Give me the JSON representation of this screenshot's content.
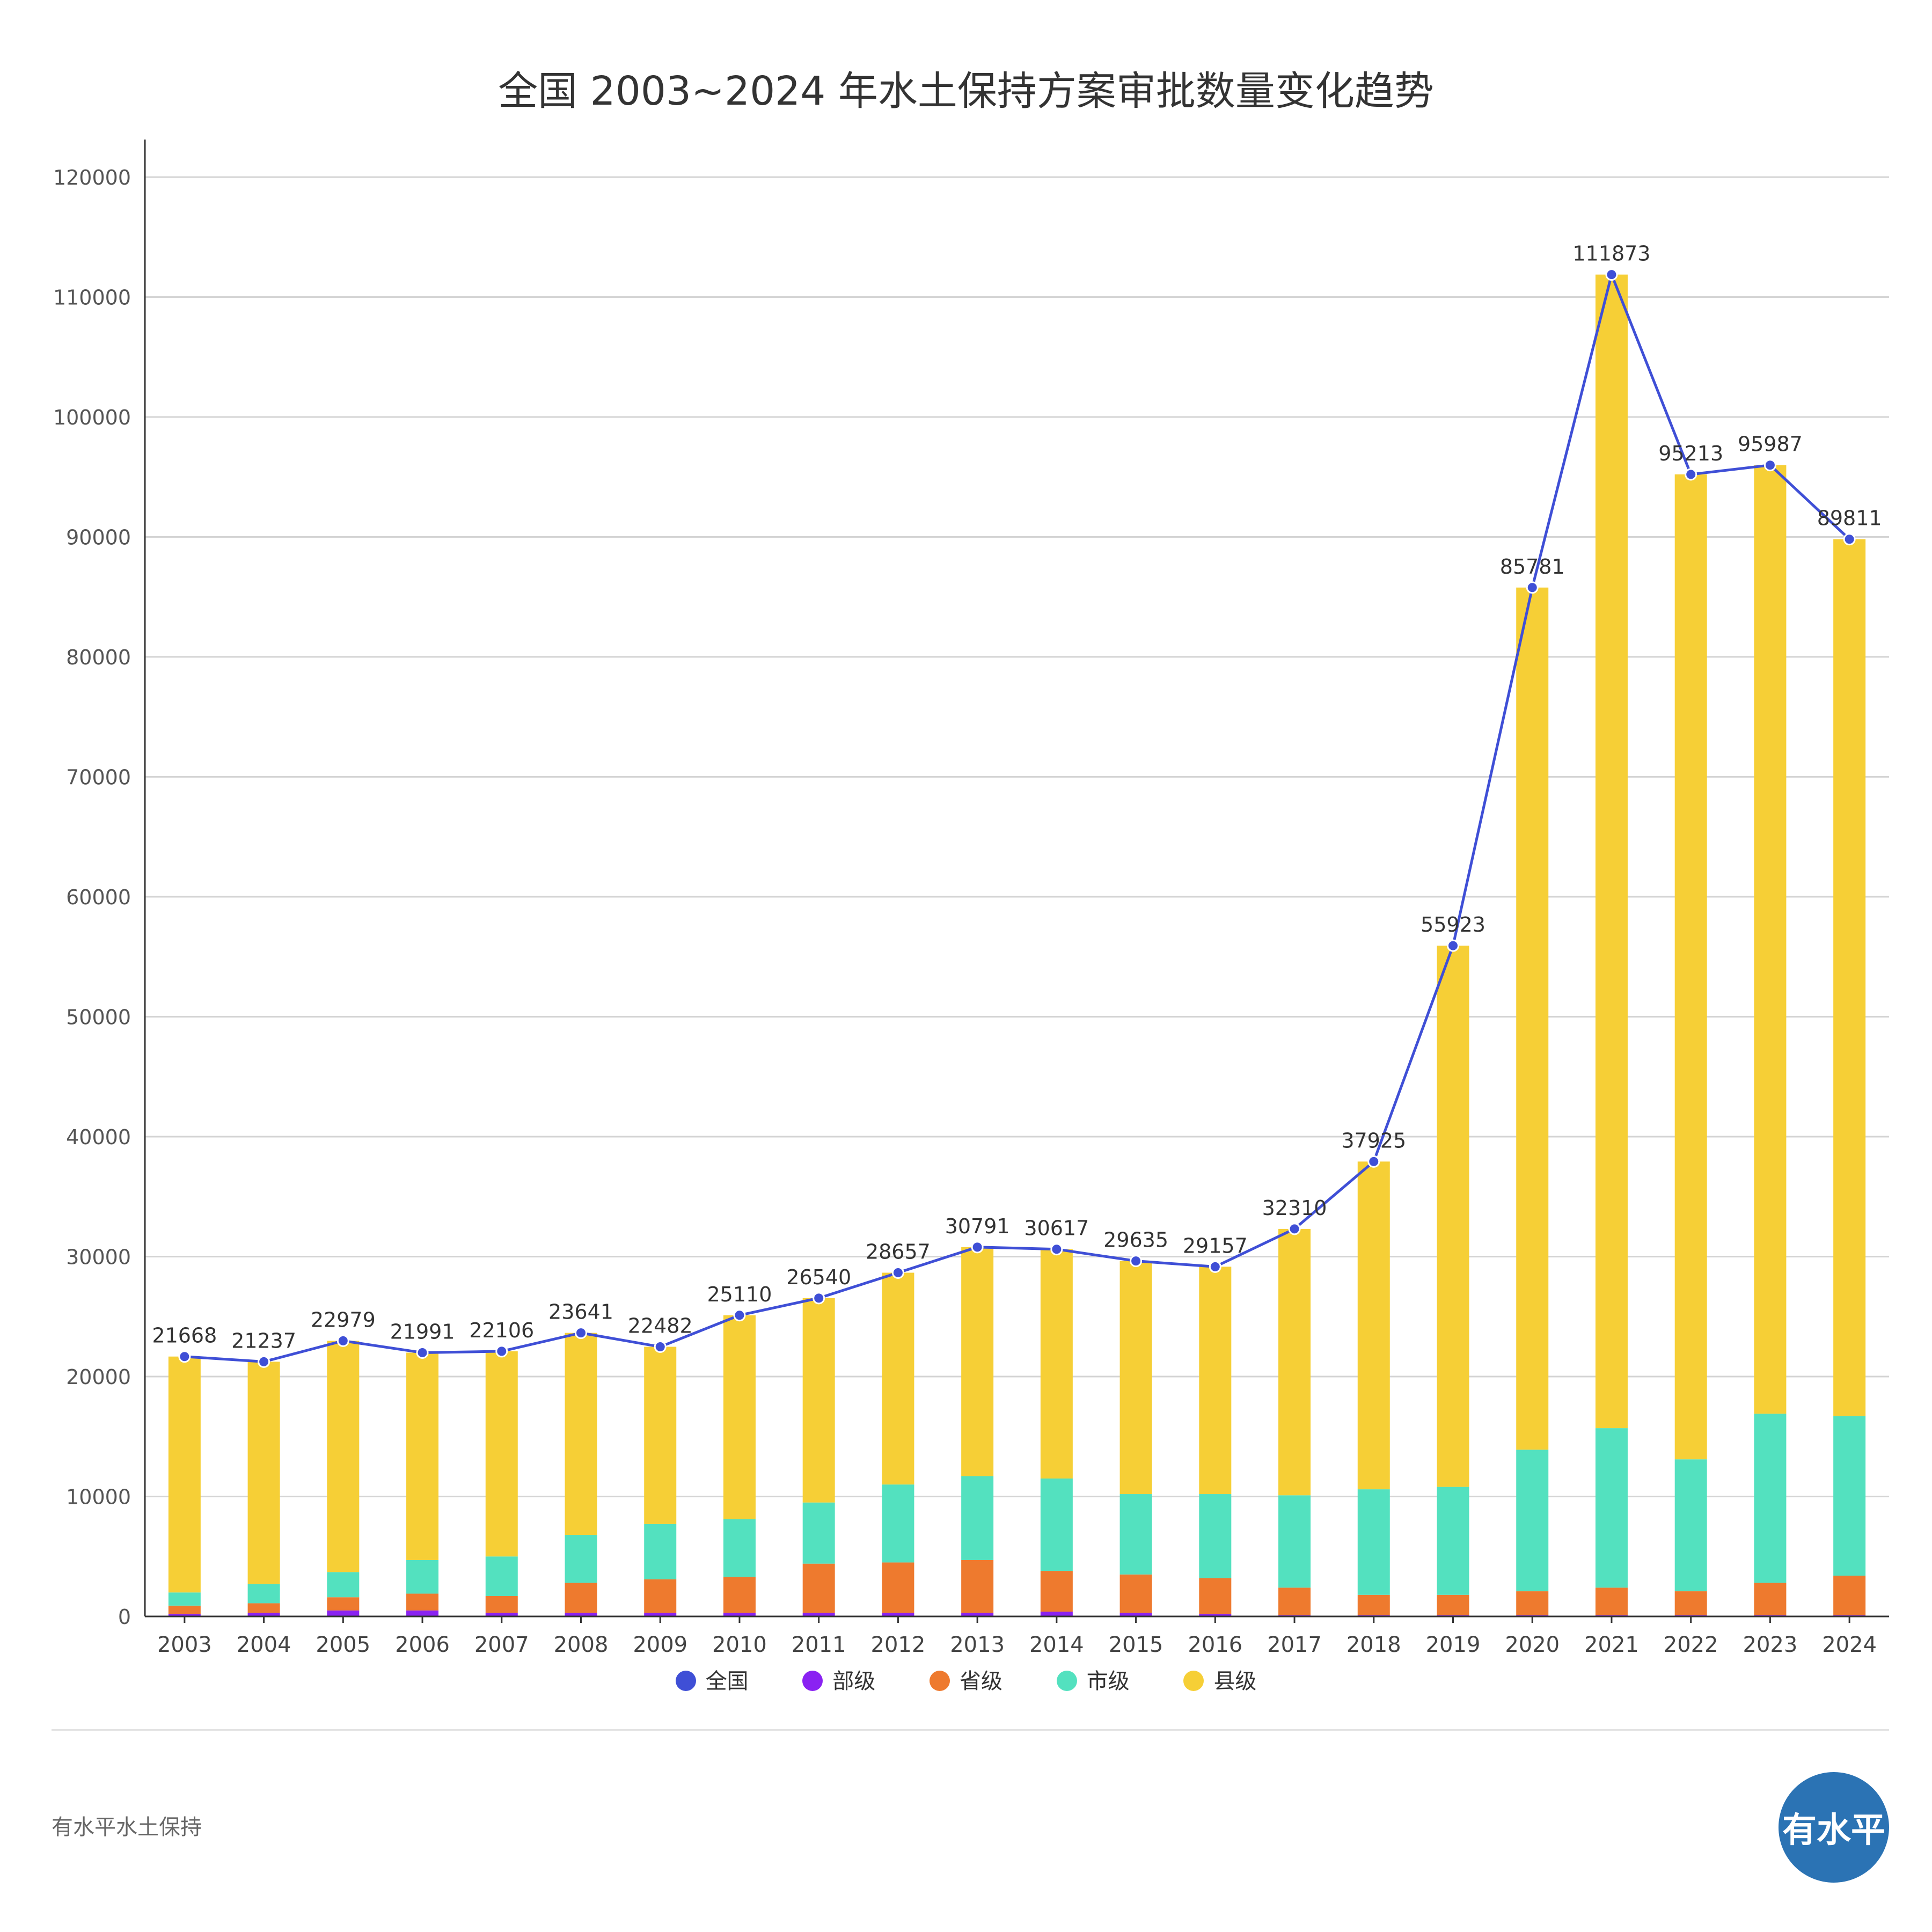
{
  "chart_data": {
    "type": "bar",
    "stacked": true,
    "title": "全国 2003~2024 年水土保持方案审批数量变化趋势",
    "categories": [
      "2003",
      "2004",
      "2005",
      "2006",
      "2007",
      "2008",
      "2009",
      "2010",
      "2011",
      "2012",
      "2013",
      "2014",
      "2015",
      "2016",
      "2017",
      "2018",
      "2019",
      "2020",
      "2021",
      "2022",
      "2023",
      "2024"
    ],
    "ylim": [
      0,
      120000
    ],
    "yticks": [
      0,
      10000,
      20000,
      30000,
      40000,
      50000,
      60000,
      70000,
      80000,
      90000,
      100000,
      110000,
      120000
    ],
    "grid": true,
    "legend_position": "bottom",
    "series": [
      {
        "name": "全国",
        "kind": "line",
        "color": "#3f4fd6",
        "values": [
          21668,
          21237,
          22979,
          21991,
          22106,
          23641,
          22482,
          25110,
          26540,
          28657,
          30791,
          30617,
          29635,
          29157,
          32310,
          37925,
          55923,
          85781,
          111873,
          95213,
          95987,
          89811
        ]
      },
      {
        "name": "部级",
        "kind": "bar",
        "color": "#8a22f2",
        "values": [
          200,
          300,
          500,
          500,
          300,
          300,
          300,
          300,
          300,
          300,
          300,
          400,
          300,
          200,
          100,
          100,
          100,
          100,
          100,
          100,
          100,
          100
        ]
      },
      {
        "name": "省级",
        "kind": "bar",
        "color": "#ee7a2e",
        "values": [
          700,
          800,
          1100,
          1400,
          1400,
          2500,
          2800,
          3000,
          4100,
          4200,
          4400,
          3400,
          3200,
          3000,
          2300,
          1700,
          1700,
          2000,
          2300,
          2000,
          2700,
          3300
        ]
      },
      {
        "name": "市级",
        "kind": "bar",
        "color": "#53e1bf",
        "values": [
          1100,
          1600,
          2100,
          2800,
          3300,
          4000,
          4600,
          4800,
          5100,
          6500,
          7000,
          7700,
          6700,
          7000,
          7700,
          8800,
          9000,
          11800,
          13300,
          11000,
          14100,
          13300
        ]
      },
      {
        "name": "县级",
        "kind": "bar",
        "color": "#f6cf36",
        "values": [
          19668,
          18537,
          19279,
          17291,
          17106,
          16841,
          14782,
          17010,
          17040,
          17657,
          19091,
          19117,
          19435,
          18957,
          22210,
          27325,
          45123,
          71881,
          96173,
          82113,
          79087,
          73111
        ]
      }
    ],
    "data_labels": [
      "21668",
      "21237",
      "22979",
      "21991",
      "22106",
      "23641",
      "22482",
      "25110",
      "26540",
      "28657",
      "30791",
      "30617",
      "29635",
      "29157",
      "32310",
      "37925",
      "55923",
      "85781",
      "111873",
      "95213",
      "95987",
      "89811"
    ]
  },
  "footer": {
    "source_label": "有水平水土保持",
    "logo_text": "有水平"
  }
}
